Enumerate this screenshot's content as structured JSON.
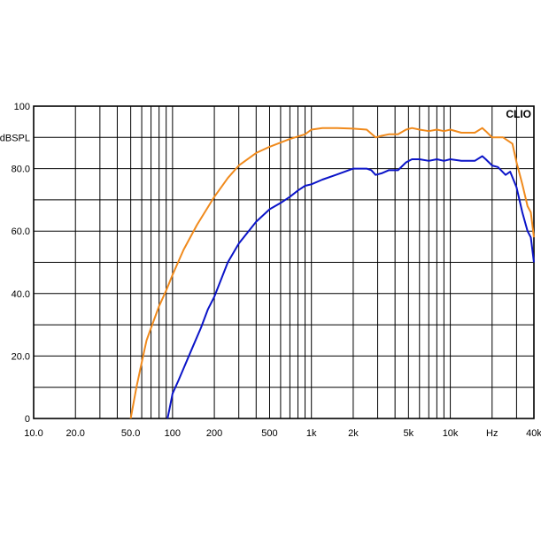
{
  "chart_data": {
    "type": "line",
    "brand": "CLIO",
    "ylabel": "dBSPL",
    "xlabel": "Hz",
    "x_scale": "log",
    "xlim": [
      10,
      40000
    ],
    "ylim": [
      0,
      100
    ],
    "grid": true,
    "legend": "none",
    "y_ticks": [
      {
        "value": 100,
        "label": "100"
      },
      {
        "value": 80,
        "label": "80.0"
      },
      {
        "value": 60,
        "label": "60.0"
      },
      {
        "value": 40,
        "label": "40.0"
      },
      {
        "value": 20,
        "label": "20.0"
      },
      {
        "value": 0,
        "label": "0"
      }
    ],
    "x_ticks": [
      {
        "value": 10,
        "label": "10.0"
      },
      {
        "value": 20,
        "label": "20.0"
      },
      {
        "value": 50,
        "label": "50.0"
      },
      {
        "value": 100,
        "label": "100"
      },
      {
        "value": 200,
        "label": "200"
      },
      {
        "value": 500,
        "label": "500"
      },
      {
        "value": 1000,
        "label": "1k"
      },
      {
        "value": 2000,
        "label": "2k"
      },
      {
        "value": 5000,
        "label": "5k"
      },
      {
        "value": 10000,
        "label": "10k"
      },
      {
        "value": 20000,
        "label": "Hz"
      },
      {
        "value": 40000,
        "label": "40k"
      }
    ],
    "series": [
      {
        "color": "#F08A1C",
        "x": [
          50,
          55,
          60,
          65,
          70,
          80,
          90,
          100,
          120,
          150,
          200,
          250,
          300,
          400,
          500,
          700,
          900,
          1000,
          1200,
          1500,
          2000,
          2500,
          2900,
          3200,
          3600,
          4200,
          4800,
          5300,
          6000,
          7000,
          8000,
          9000,
          10000,
          12000,
          15000,
          17000,
          18000,
          20000,
          24000,
          28000,
          30000,
          33000,
          36000,
          38000,
          40000
        ],
        "y": [
          0,
          10,
          18,
          25,
          29,
          36,
          41,
          46,
          54,
          62,
          71,
          77,
          81,
          85,
          87,
          89.5,
          91,
          92.5,
          93,
          93,
          92.8,
          92.5,
          90,
          90.5,
          91,
          91,
          92.5,
          93,
          92.5,
          92,
          92.5,
          92,
          92.5,
          91.5,
          91.5,
          93,
          92,
          90,
          90,
          88,
          82,
          75,
          68,
          66,
          58
        ]
      },
      {
        "color": "#0B14C8",
        "x": [
          92,
          95,
          100,
          110,
          120,
          140,
          160,
          180,
          200,
          250,
          300,
          400,
          500,
          600,
          700,
          800,
          900,
          1000,
          1200,
          1500,
          2000,
          2500,
          2700,
          2900,
          3200,
          3600,
          4200,
          4800,
          5300,
          6000,
          7000,
          8000,
          9000,
          10000,
          12000,
          15000,
          17000,
          18000,
          20000,
          22000,
          25000,
          27000,
          30000,
          33000,
          36000,
          38000,
          40000
        ],
        "y": [
          0,
          3,
          8,
          12,
          16,
          23,
          29,
          35,
          39,
          50,
          56,
          63,
          67,
          69,
          71,
          73,
          74.5,
          75,
          76.5,
          78,
          80,
          80,
          79.5,
          78,
          78.5,
          79.5,
          79.5,
          82,
          83,
          83,
          82.5,
          83,
          82.5,
          83,
          82.5,
          82.5,
          84,
          83,
          81,
          80.5,
          78,
          79,
          74,
          66,
          60,
          58,
          50
        ]
      }
    ]
  }
}
